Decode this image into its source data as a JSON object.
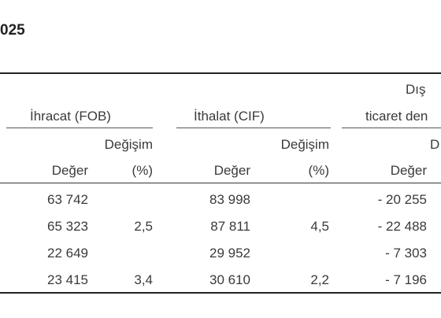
{
  "title": "025",
  "header": {
    "exports_label": "İhracat (FOB)",
    "imports_label": "İthalat (CIF)",
    "balance_line1": "Dış",
    "balance_line2": "ticaret den",
    "change_label": "Değişim",
    "change_label_partial": "D",
    "value_label": "Değer",
    "percent_label": "(%)"
  },
  "rows": [
    {
      "exp_val": "63 742",
      "exp_chg": "",
      "imp_val": "83 998",
      "imp_chg": "",
      "bal_val": "- 20 255"
    },
    {
      "exp_val": "65 323",
      "exp_chg": "2,5",
      "imp_val": "87 811",
      "imp_chg": "4,5",
      "bal_val": "- 22 488"
    },
    {
      "exp_val": "22 649",
      "exp_chg": "",
      "imp_val": "29 952",
      "imp_chg": "",
      "bal_val": "- 7 303"
    },
    {
      "exp_val": "23 415",
      "exp_chg": "3,4",
      "imp_val": "30 610",
      "imp_chg": "2,2",
      "bal_val": "- 7 196"
    }
  ]
}
